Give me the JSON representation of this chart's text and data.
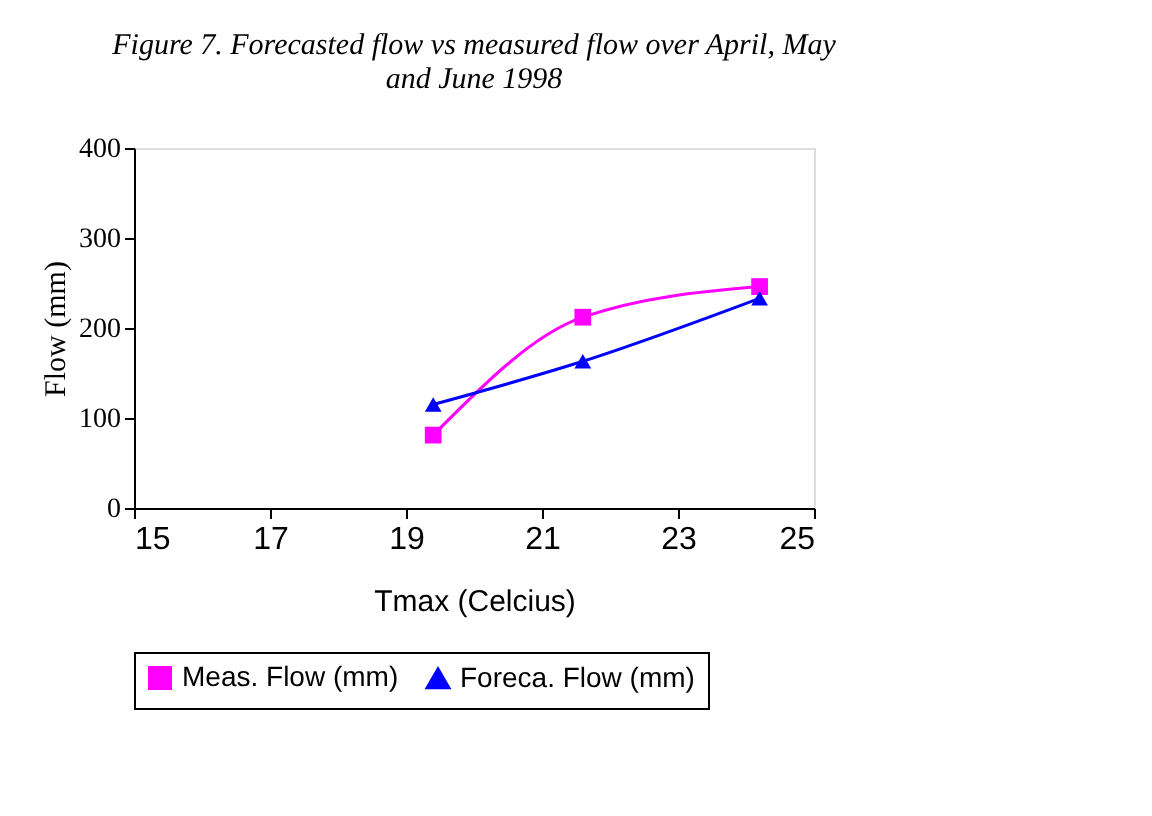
{
  "chart_data": {
    "type": "line",
    "title": [
      "Figure 7. Forecasted flow vs measured flow over April, May",
      "and June 1998"
    ],
    "xlabel": "Tmax (Celcius)",
    "ylabel": "Flow (mm)",
    "x": [
      19.4,
      21.6,
      24.2
    ],
    "series": [
      {
        "name": "Meas. Flow (mm)",
        "color": "#ff00ff",
        "marker": "square",
        "values": [
          81,
          212,
          246
        ]
      },
      {
        "name": "Foreca. Flow (mm)",
        "color": "#0000ff",
        "marker": "triangle",
        "values": [
          115,
          163,
          233
        ]
      }
    ],
    "xlim": [
      15,
      25
    ],
    "xticks": [
      15,
      17,
      19,
      21,
      23,
      25
    ],
    "ylim": [
      0,
      400
    ],
    "yticks": [
      0,
      100,
      200,
      300,
      400
    ],
    "grid": false,
    "legend": "bottom",
    "line_style": "solid"
  }
}
